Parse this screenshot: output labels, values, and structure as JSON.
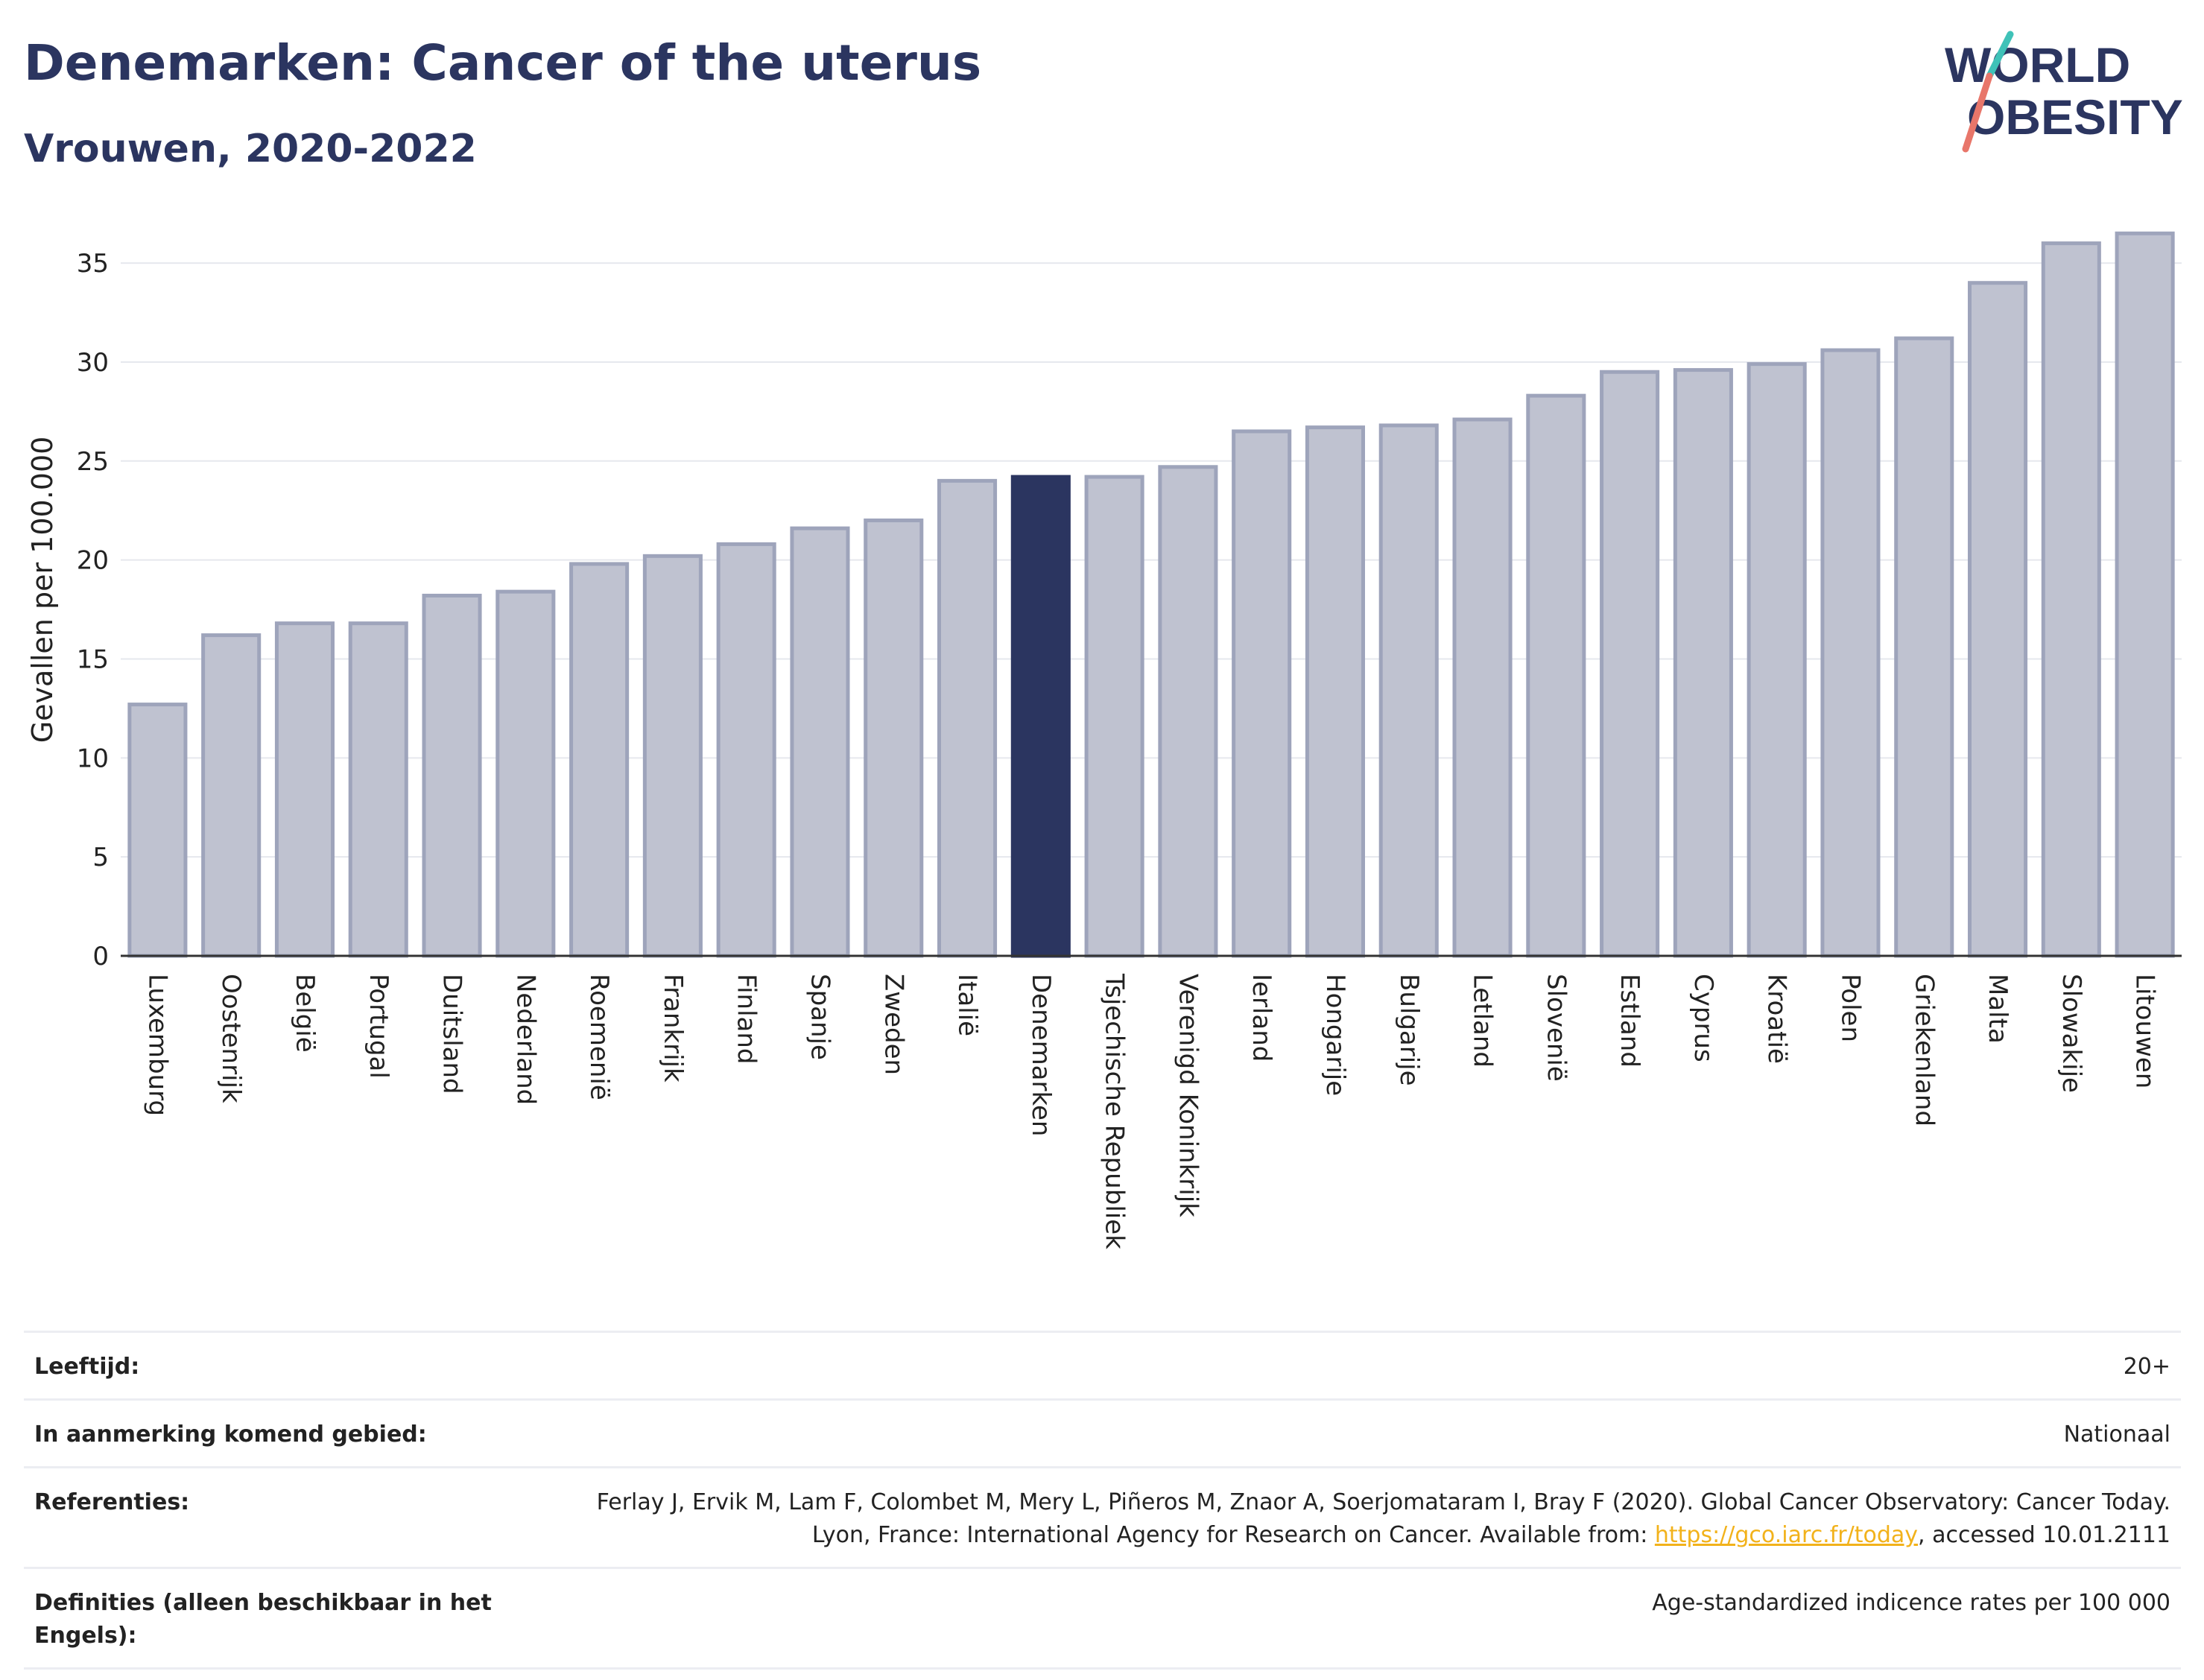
{
  "header": {
    "title": "Denemarken: Cancer of the uterus",
    "subtitle": "Vrouwen, 2020-2022"
  },
  "logo": {
    "line1": "WORLD",
    "line2": "OBESITY"
  },
  "colors": {
    "highlight": "#2b3560",
    "bar": "#bfc2d0",
    "bar_edge": "#9ea4bb",
    "accent_pink": "#e8766a",
    "accent_teal": "#3fc2b8"
  },
  "chart_data": {
    "type": "bar",
    "ylabel": "Gevallen per 100.000",
    "xlabel": "",
    "ylim": [
      0,
      37
    ],
    "yticks": [
      0,
      5,
      10,
      15,
      20,
      25,
      30,
      35
    ],
    "highlight": "Denemarken",
    "grid": true,
    "categories": [
      "Luxemburg",
      "Oostenrijk",
      "België",
      "Portugal",
      "Duitsland",
      "Nederland",
      "Roemenië",
      "Frankrijk",
      "Finland",
      "Spanje",
      "Zweden",
      "Italië",
      "Denemarken",
      "Tsjechische Republiek",
      "Verenigd Koninkrijk",
      "Ierland",
      "Hongarije",
      "Bulgarije",
      "Letland",
      "Slovenië",
      "Estland",
      "Cyprus",
      "Kroatië",
      "Polen",
      "Griekenland",
      "Malta",
      "Slowakije",
      "Litouwen"
    ],
    "values": [
      12.7,
      16.2,
      16.8,
      16.8,
      18.2,
      18.4,
      19.8,
      20.2,
      20.8,
      21.6,
      22.0,
      24.0,
      24.2,
      24.2,
      24.7,
      26.5,
      26.7,
      26.8,
      27.1,
      28.3,
      29.5,
      29.6,
      29.9,
      30.6,
      31.2,
      34.0,
      36.0,
      36.5
    ]
  },
  "meta": {
    "rows": [
      {
        "label": "Leeftijd:",
        "value": "20+"
      },
      {
        "label": "In aanmerking komend gebied:",
        "value": "Nationaal"
      }
    ],
    "references": {
      "label": "Referenties:",
      "text_before": "Ferlay J, Ervik M, Lam F, Colombet M, Mery L, Piñeros M, Znaor A, Soerjomataram I, Bray F (2020). Global Cancer Observatory: Cancer Today. Lyon, France: International Agency for Research on Cancer. Available from: ",
      "link": "https://gco.iarc.fr/today",
      "text_after": ", accessed 10.01.2111"
    },
    "definitions": {
      "label": "Definities (alleen beschikbaar in het Engels):",
      "value": "Age-standardized indicence rates per 100 000"
    }
  }
}
